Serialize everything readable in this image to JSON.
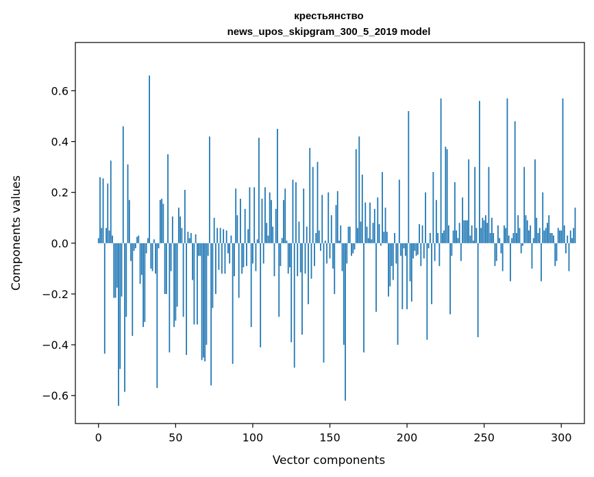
{
  "chart_data": {
    "type": "bar",
    "title_line1": "крестьянство",
    "title_line2": "news_upos_skipgram_300_5_2019 model",
    "xlabel": "Vector components",
    "ylabel": "Components values",
    "xlim": [
      -15,
      315
    ],
    "ylim": [
      -0.71,
      0.79
    ],
    "xticks": [
      0,
      50,
      100,
      150,
      200,
      250,
      300
    ],
    "yticks": [
      0.6,
      0.4,
      0.2,
      0.0,
      -0.2,
      -0.4,
      -0.6
    ],
    "ytick_labels": [
      "0.6",
      "0.4",
      "0.2",
      "0.0",
      "−0.2",
      "−0.4",
      "−0.6"
    ],
    "bar_color": "#1f77b4",
    "values": [
      0.02,
      0.26,
      0.06,
      0.255,
      -0.435,
      0.06,
      0.235,
      0.05,
      0.325,
      0.03,
      -0.215,
      -0.215,
      -0.175,
      -0.64,
      -0.495,
      -0.21,
      0.46,
      -0.585,
      -0.29,
      0.31,
      0.17,
      -0.07,
      -0.365,
      -0.03,
      -0.02,
      0.025,
      0.03,
      -0.16,
      -0.125,
      -0.33,
      -0.31,
      -0.04,
      0.02,
      0.66,
      -0.1,
      -0.11,
      0.015,
      -0.12,
      -0.57,
      -0.02,
      0.17,
      0.175,
      0.155,
      -0.2,
      -0.2,
      0.35,
      -0.43,
      -0.11,
      0.105,
      -0.33,
      -0.305,
      -0.25,
      0.14,
      0.105,
      0.06,
      -0.29,
      0.21,
      -0.44,
      0.045,
      0.02,
      0.04,
      -0.145,
      -0.32,
      0.035,
      -0.32,
      -0.05,
      -0.05,
      -0.46,
      -0.45,
      -0.465,
      -0.4,
      -0.05,
      0.42,
      -0.56,
      -0.255,
      0.1,
      -0.2,
      0.06,
      -0.105,
      0.06,
      -0.12,
      0.055,
      -0.12,
      0.05,
      -0.04,
      -0.08,
      0.03,
      -0.475,
      -0.13,
      0.215,
      0.11,
      -0.215,
      0.175,
      -0.12,
      -0.095,
      0.135,
      -0.09,
      0.055,
      0.22,
      -0.33,
      -0.08,
      0.22,
      -0.11,
      0.015,
      0.415,
      -0.41,
      0.175,
      -0.08,
      0.22,
      0.08,
      0.03,
      0.2,
      0.17,
      0.065,
      -0.13,
      0.135,
      0.45,
      -0.29,
      -0.09,
      0.02,
      0.17,
      0.215,
      0.01,
      -0.12,
      -0.095,
      -0.39,
      0.25,
      -0.49,
      0.24,
      -0.13,
      0.085,
      -0.115,
      -0.36,
      0.215,
      -0.12,
      0.065,
      -0.24,
      0.375,
      -0.14,
      0.3,
      -0.09,
      0.04,
      0.32,
      0.05,
      -0.03,
      0.19,
      -0.47,
      0.01,
      -0.08,
      0.2,
      -0.06,
      0.11,
      -0.1,
      -0.2,
      0.15,
      0.205,
      0.01,
      0.07,
      -0.11,
      -0.4,
      -0.62,
      -0.08,
      0.065,
      0.065,
      -0.05,
      -0.04,
      -0.025,
      0.37,
      0.06,
      0.42,
      0.085,
      0.27,
      -0.43,
      0.16,
      0.065,
      0.02,
      0.16,
      0.015,
      0.08,
      0.135,
      -0.27,
      0.18,
      0.075,
      -0.01,
      0.28,
      0.045,
      0.14,
      0.045,
      -0.21,
      -0.17,
      -0.09,
      -0.145,
      0.04,
      -0.08,
      -0.4,
      0.25,
      -0.05,
      -0.26,
      -0.02,
      -0.05,
      -0.26,
      0.52,
      -0.15,
      -0.23,
      -0.06,
      -0.03,
      -0.05,
      -0.045,
      0.075,
      -0.09,
      0.07,
      -0.06,
      0.2,
      -0.38,
      -0.02,
      0.04,
      -0.24,
      0.28,
      -0.07,
      0.17,
      0.04,
      -0.09,
      0.57,
      0.04,
      0.05,
      0.38,
      0.37,
      0.07,
      -0.28,
      -0.05,
      0.05,
      0.24,
      0.05,
      0.02,
      0.08,
      -0.07,
      0.18,
      0.09,
      0.09,
      0.09,
      0.33,
      0.03,
      0.07,
      0.01,
      0.3,
      0.06,
      -0.37,
      0.56,
      0.06,
      0.1,
      0.09,
      0.11,
      0.08,
      0.3,
      0.04,
      0.1,
      0.04,
      -0.09,
      -0.07,
      0.07,
      0.02,
      -0.04,
      -0.11,
      0.07,
      0.06,
      0.57,
      0.03,
      -0.15,
      0.02,
      0.04,
      0.48,
      0.04,
      0.11,
      0.06,
      -0.04,
      -0.01,
      0.3,
      0.11,
      0.09,
      0.05,
      0.07,
      -0.1,
      0.02,
      0.33,
      0.1,
      0.04,
      0.06,
      -0.15,
      0.2,
      0.05,
      0.06,
      0.08,
      0.11,
      0.04,
      0.04,
      0.03,
      -0.09,
      -0.07,
      0.06,
      0.05,
      0.05,
      0.57,
      0.07,
      -0.04,
      0.03,
      -0.11,
      0.05,
      0.02,
      0.06,
      0.14
    ]
  }
}
